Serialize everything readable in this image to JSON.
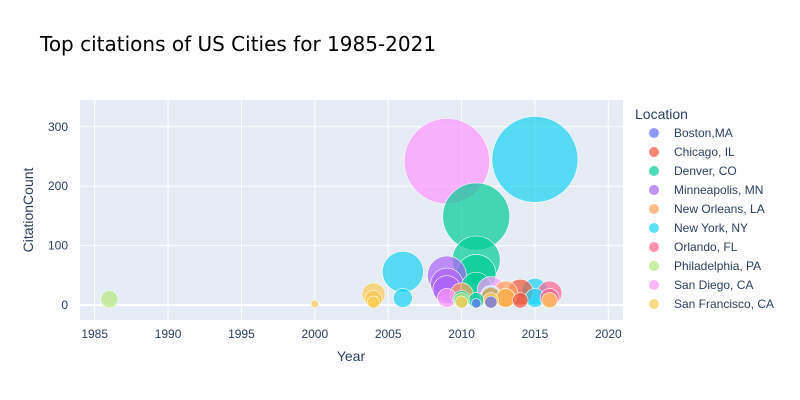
{
  "chart_data": {
    "type": "scatter",
    "title": "Top citations of US Cities for 1985-2021",
    "xlabel": "Year",
    "ylabel": "CitationCount",
    "xlim": [
      1984,
      2021
    ],
    "ylim": [
      -25,
      345
    ],
    "x_ticks": [
      1985,
      1990,
      1995,
      2000,
      2005,
      2010,
      2015,
      2020
    ],
    "y_ticks": [
      0,
      100,
      200,
      300
    ],
    "grid": true,
    "legend_title": "Location",
    "legend_position": "right",
    "series": [
      {
        "name": "Boston,MA",
        "color": "#636efa",
        "points": [
          {
            "x": 2011,
            "y": 3
          },
          {
            "x": 2012,
            "y": 5
          }
        ]
      },
      {
        "name": "Chicago, IL",
        "color": "#ef553b",
        "points": [
          {
            "x": 2014,
            "y": 22
          },
          {
            "x": 2014,
            "y": 8
          },
          {
            "x": 2013,
            "y": 12
          }
        ]
      },
      {
        "name": "Denver, CO",
        "color": "#00cc96",
        "points": [
          {
            "x": 2011,
            "y": 149
          },
          {
            "x": 2011,
            "y": 76
          },
          {
            "x": 2011,
            "y": 52
          },
          {
            "x": 2011,
            "y": 30
          },
          {
            "x": 2012,
            "y": 14
          },
          {
            "x": 2011,
            "y": 8
          },
          {
            "x": 2010,
            "y": 10
          }
        ]
      },
      {
        "name": "Minneapolis, MN",
        "color": "#ab63fa",
        "points": [
          {
            "x": 2009,
            "y": 50
          },
          {
            "x": 2009,
            "y": 35
          },
          {
            "x": 2009,
            "y": 26
          }
        ]
      },
      {
        "name": "New Orleans, LA",
        "color": "#ffa15a",
        "points": [
          {
            "x": 2010,
            "y": 18
          },
          {
            "x": 2013,
            "y": 20
          },
          {
            "x": 2012,
            "y": 13
          }
        ]
      },
      {
        "name": "New York, NY",
        "color": "#19d3f3",
        "points": [
          {
            "x": 2015,
            "y": 245
          },
          {
            "x": 2006,
            "y": 56
          },
          {
            "x": 2015,
            "y": 23
          },
          {
            "x": 2006,
            "y": 12
          },
          {
            "x": 2015,
            "y": 12
          }
        ]
      },
      {
        "name": "Orlando, FL",
        "color": "#ff6692",
        "points": [
          {
            "x": 2016,
            "y": 20
          },
          {
            "x": 2016,
            "y": 12
          }
        ]
      },
      {
        "name": "Philadelphia, PA",
        "color": "#b6e880",
        "points": [
          {
            "x": 1986,
            "y": 10
          },
          {
            "x": 2010,
            "y": 8
          }
        ]
      },
      {
        "name": "San Diego, CA",
        "color": "#ff97ff",
        "points": [
          {
            "x": 2009,
            "y": 242
          },
          {
            "x": 2012,
            "y": 25
          },
          {
            "x": 2009,
            "y": 12
          },
          {
            "x": 2012,
            "y": 15
          }
        ]
      },
      {
        "name": "San Francisco, CA",
        "color": "#fecb52",
        "points": [
          {
            "x": 2004,
            "y": 18
          },
          {
            "x": 2004,
            "y": 10
          },
          {
            "x": 2000,
            "y": 2
          },
          {
            "x": 2013,
            "y": 12
          },
          {
            "x": 2010,
            "y": 5
          },
          {
            "x": 2012,
            "y": 8
          },
          {
            "x": 2016,
            "y": 8
          },
          {
            "x": 2004,
            "y": 5
          }
        ]
      }
    ]
  }
}
